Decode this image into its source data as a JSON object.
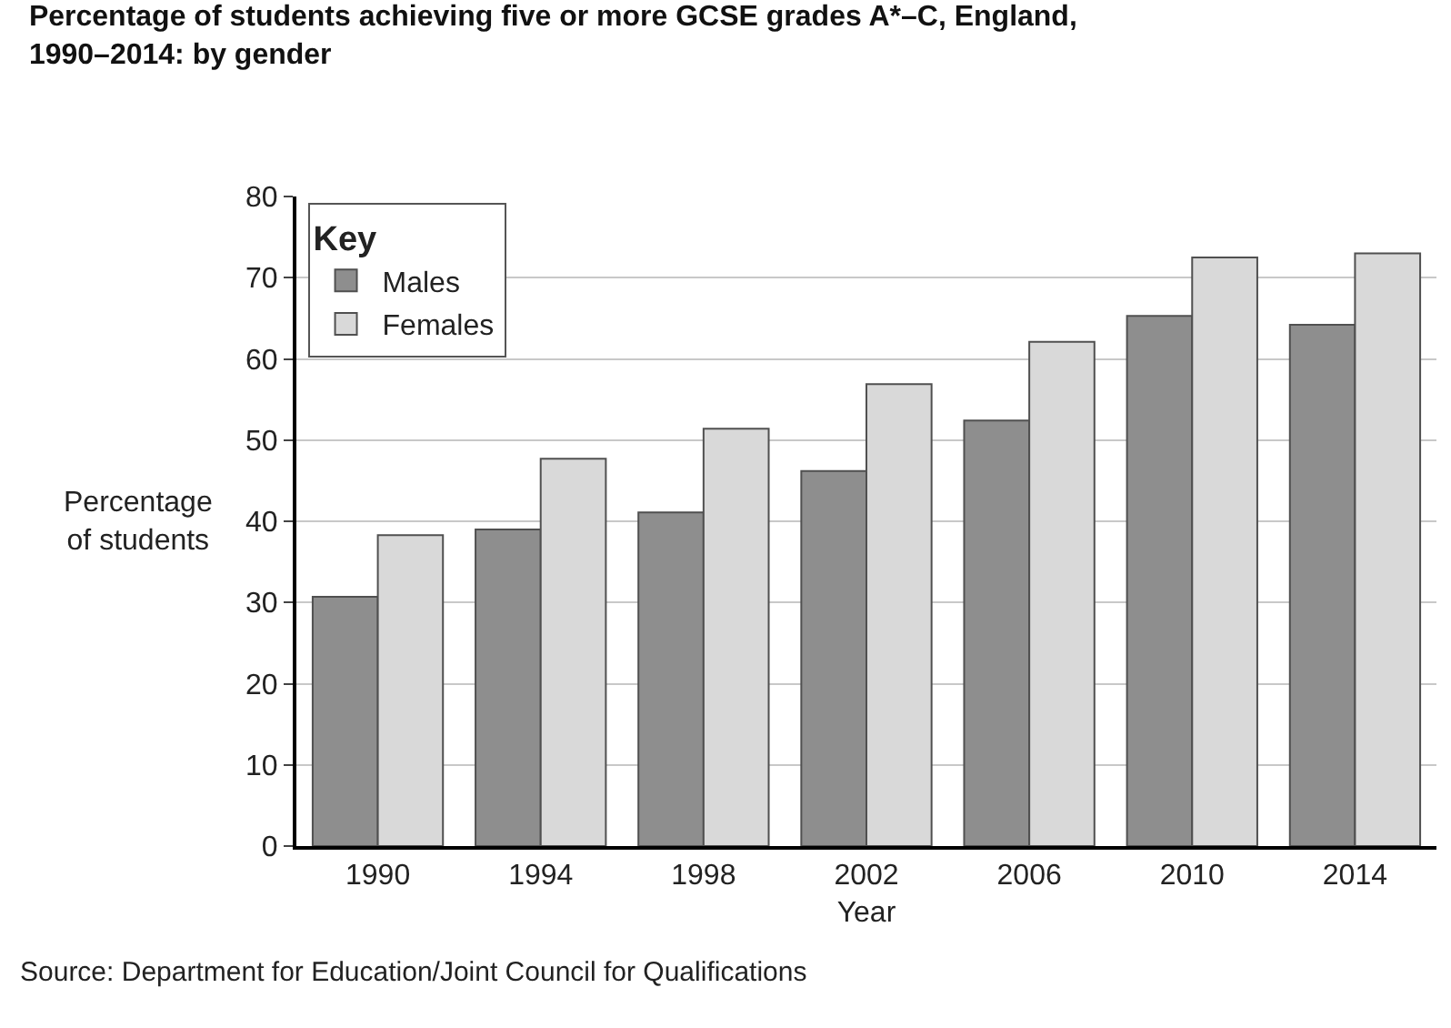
{
  "chart_data": {
    "type": "bar",
    "title": "Percentage of students achieving five or more GCSE grades A*–C, England,\n1990–2014: by gender",
    "xlabel": "Year",
    "ylabel": "Percentage\nof students",
    "legend_title": "Key",
    "categories": [
      "1990",
      "1994",
      "1998",
      "2002",
      "2006",
      "2010",
      "2014"
    ],
    "series": [
      {
        "name": "Males",
        "color": "#8e8e8e",
        "values": [
          30.7,
          39.0,
          41.1,
          46.2,
          52.4,
          65.3,
          64.2
        ]
      },
      {
        "name": "Females",
        "color": "#d9d9d9",
        "values": [
          38.3,
          47.7,
          51.4,
          56.9,
          62.1,
          72.5,
          73.0
        ]
      }
    ],
    "ylim": [
      0,
      80
    ],
    "yticks": [
      0,
      10,
      20,
      30,
      40,
      50,
      60,
      70,
      80
    ],
    "grid": "y",
    "legend": "top left",
    "annotations": [
      "Source: Department for Education/Joint Council for Qualifications"
    ]
  }
}
